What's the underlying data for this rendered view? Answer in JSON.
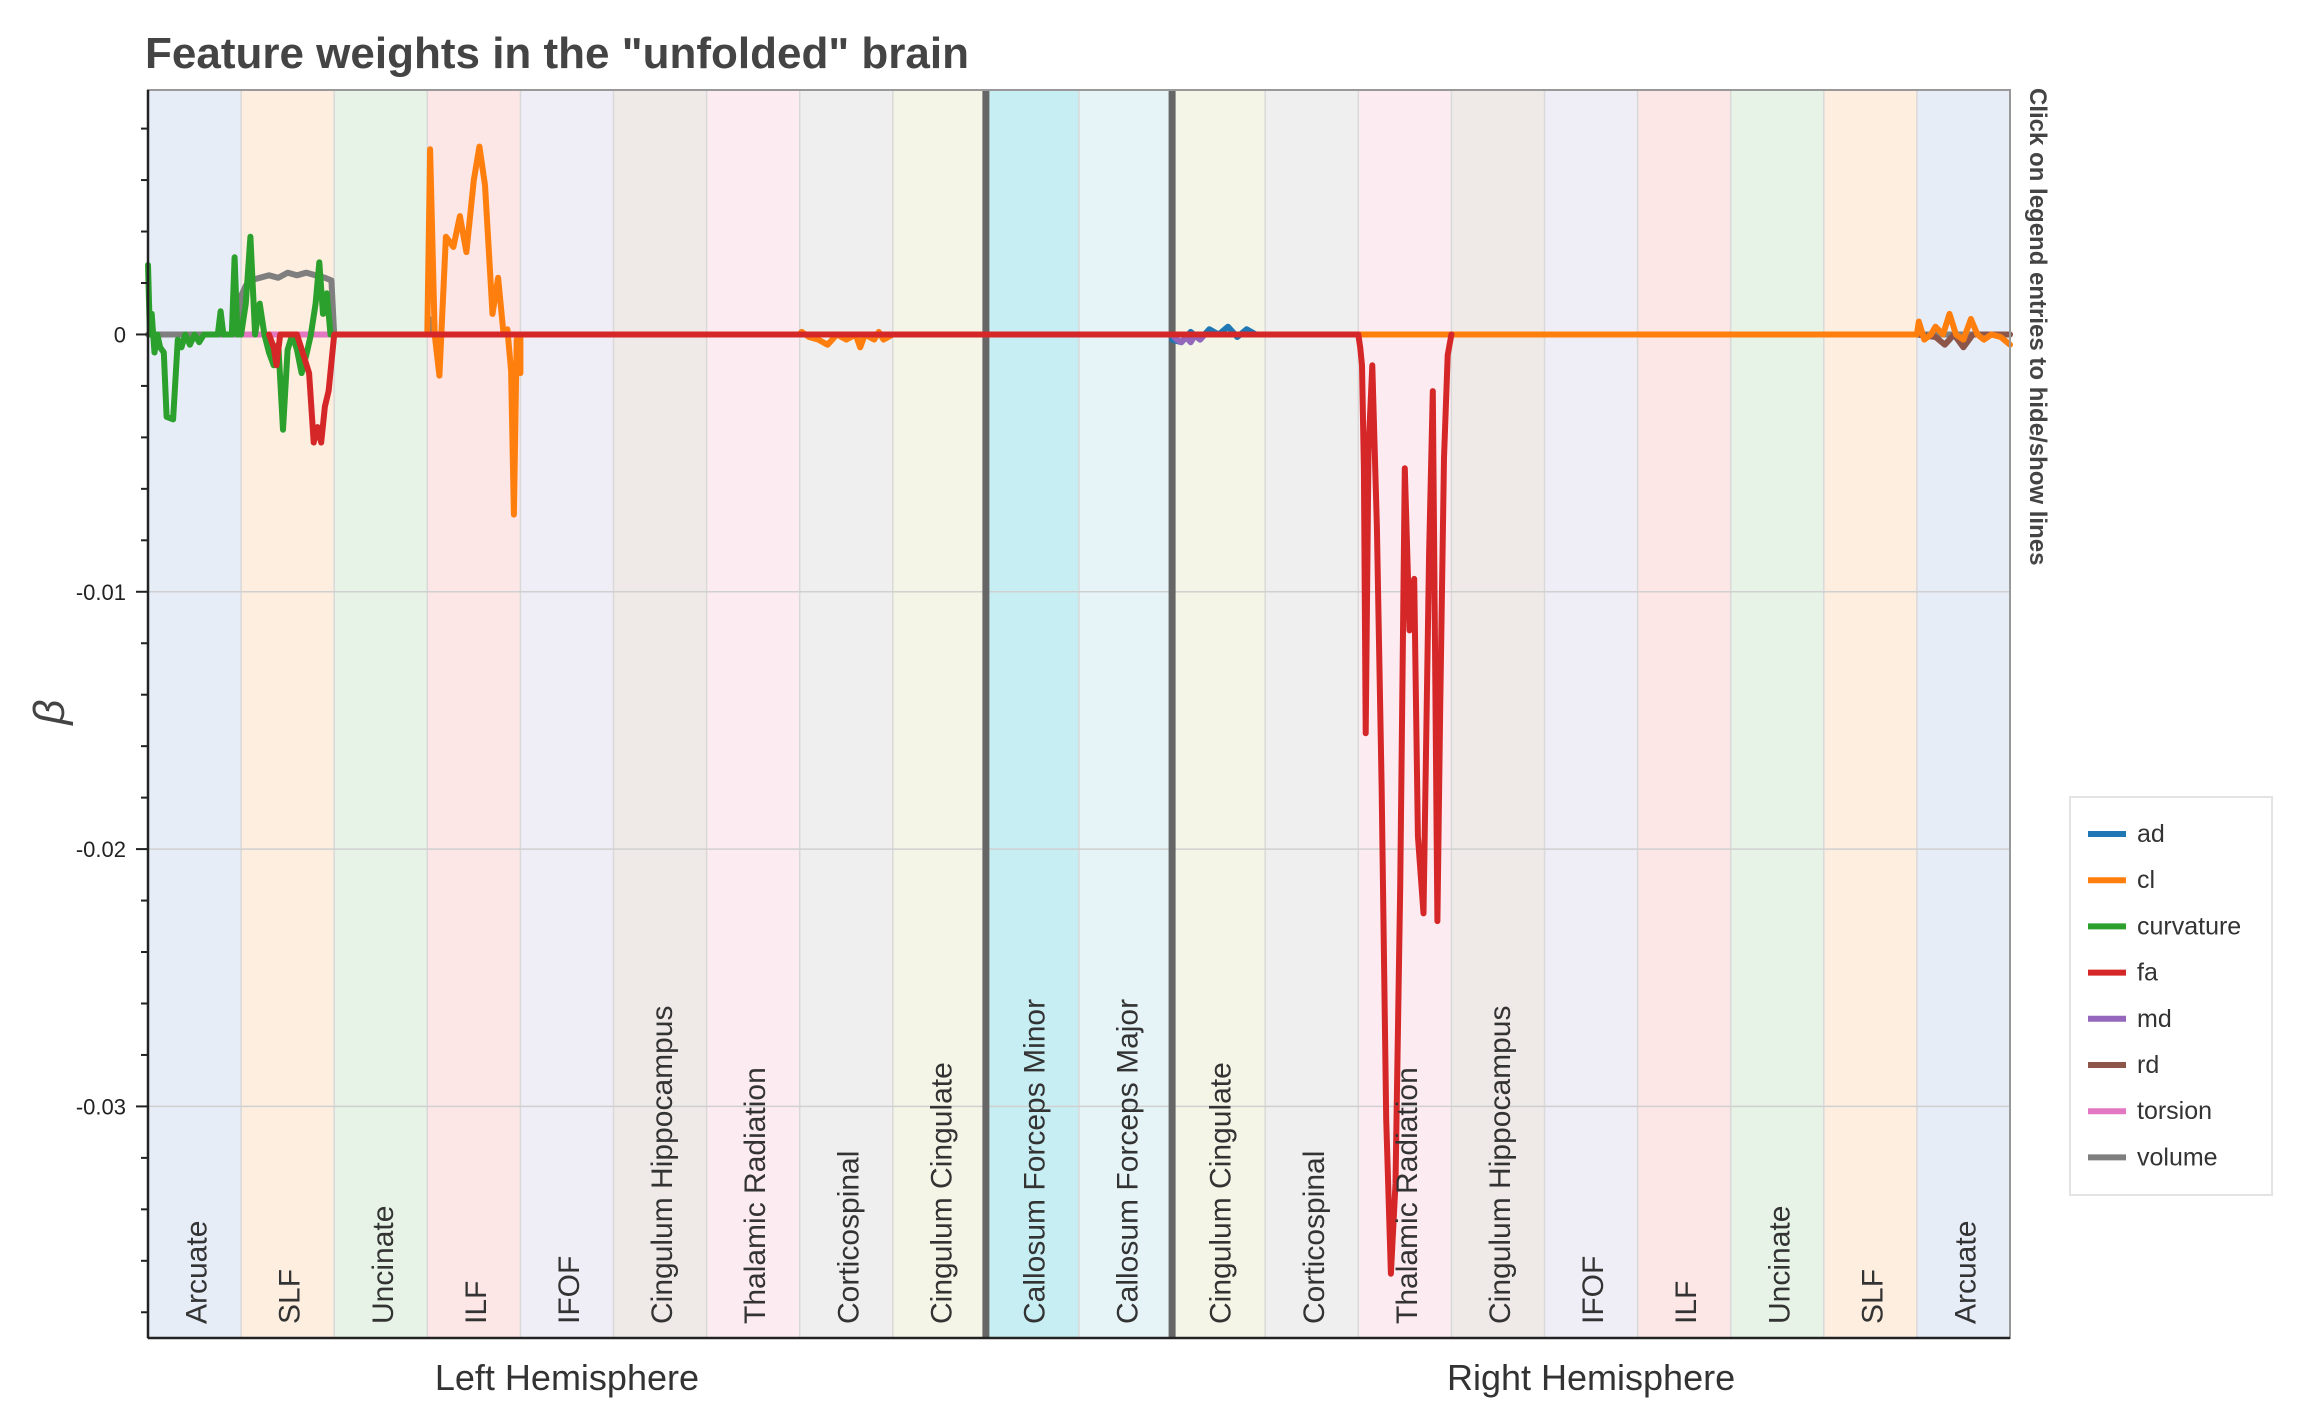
{
  "chart_data": {
    "type": "line",
    "title": "Feature weights in the \"unfolded\" brain",
    "ylabel": "β",
    "xlabel": "",
    "ylim": [
      -0.039,
      0.0095
    ],
    "yticks": [
      {
        "value": 0,
        "label": "0"
      },
      {
        "value": -0.01,
        "label": "-0.01"
      },
      {
        "value": -0.02,
        "label": "-0.02"
      },
      {
        "value": -0.03,
        "label": "-0.03"
      }
    ],
    "grid": true,
    "side_note": "Click on legend entries to hide/show lines",
    "x_groups": [
      {
        "label": "Left Hemisphere",
        "from": 0,
        "to": 9
      },
      {
        "label": "Right Hemisphere",
        "from": 11,
        "to": 20
      }
    ],
    "separators": [
      9,
      11
    ],
    "tracts": [
      {
        "name": "Arcuate",
        "color": "#e7edf7"
      },
      {
        "name": "SLF",
        "color": "#fdeee0"
      },
      {
        "name": "Uncinate",
        "color": "#e6f3e6"
      },
      {
        "name": "ILF",
        "color": "#fce6e6"
      },
      {
        "name": "IFOF",
        "color": "#efedf5"
      },
      {
        "name": "Cingulum Hippocampus",
        "color": "#efeae8"
      },
      {
        "name": "Thalamic Radiation",
        "color": "#fcecf2"
      },
      {
        "name": "Corticospinal",
        "color": "#efefef"
      },
      {
        "name": "Cingulum Cingulate",
        "color": "#f4f5e6"
      },
      {
        "name": "Callosum Forceps Minor",
        "color": "#c7eef3"
      },
      {
        "name": "Callosum Forceps Major",
        "color": "#e6f4f7"
      },
      {
        "name": "Cingulum Cingulate",
        "color": "#f4f5e6"
      },
      {
        "name": "Corticospinal",
        "color": "#efefef"
      },
      {
        "name": "Thalamic Radiation",
        "color": "#fcecf2"
      },
      {
        "name": "Cingulum Hippocampus",
        "color": "#efeae8"
      },
      {
        "name": "IFOF",
        "color": "#efedf5"
      },
      {
        "name": "ILF",
        "color": "#fce6e6"
      },
      {
        "name": "Uncinate",
        "color": "#e6f3e6"
      },
      {
        "name": "SLF",
        "color": "#fdeee0"
      },
      {
        "name": "Arcuate",
        "color": "#e7edf7"
      }
    ],
    "series": [
      {
        "name": "ad",
        "color": "#1f77b4",
        "points": [
          [
            11.0,
            -0.0002
          ],
          [
            11.1,
            -0.0003
          ],
          [
            11.2,
            0.0001
          ],
          [
            11.3,
            -0.0002
          ],
          [
            11.4,
            0.0002
          ],
          [
            11.5,
            0.0
          ],
          [
            11.6,
            0.0003
          ],
          [
            11.7,
            -0.0001
          ],
          [
            11.8,
            0.0002
          ],
          [
            11.9,
            0.0
          ],
          [
            12.0,
            0.0
          ]
        ]
      },
      {
        "name": "cl",
        "color": "#ff7f0e",
        "points": [
          [
            3.0,
            0.0
          ],
          [
            3.03,
            0.0072
          ],
          [
            3.08,
            0.0
          ],
          [
            3.13,
            -0.0016
          ],
          [
            3.2,
            0.0038
          ],
          [
            3.28,
            0.0034
          ],
          [
            3.35,
            0.0046
          ],
          [
            3.42,
            0.0032
          ],
          [
            3.5,
            0.006
          ],
          [
            3.56,
            0.0073
          ],
          [
            3.62,
            0.0058
          ],
          [
            3.7,
            0.0008
          ],
          [
            3.76,
            0.0022
          ],
          [
            3.82,
            0.0
          ],
          [
            3.86,
            0.0002
          ],
          [
            3.9,
            -0.0014
          ],
          [
            3.93,
            -0.007
          ],
          [
            3.96,
            -0.0002
          ],
          [
            4.0,
            -0.0015
          ],
          [
            4.0,
            0.0
          ],
          [
            7.0,
            0.0
          ],
          [
            7.02,
            0.0001
          ],
          [
            7.1,
            -0.0001
          ],
          [
            7.2,
            -0.0002
          ],
          [
            7.3,
            -0.0004
          ],
          [
            7.4,
            0.0
          ],
          [
            7.5,
            -0.0002
          ],
          [
            7.6,
            0.0
          ],
          [
            7.65,
            -0.0005
          ],
          [
            7.7,
            0.0
          ],
          [
            7.8,
            -0.0002
          ],
          [
            7.85,
            0.0001
          ],
          [
            7.9,
            -0.0002
          ],
          [
            8.0,
            0.0
          ],
          [
            19.0,
            0.0
          ],
          [
            19.02,
            0.0005
          ],
          [
            19.08,
            -0.0002
          ],
          [
            19.15,
            0.0
          ],
          [
            19.2,
            0.0003
          ],
          [
            19.28,
            0.0
          ],
          [
            19.35,
            0.0008
          ],
          [
            19.42,
            0.0
          ],
          [
            19.5,
            -0.0002
          ],
          [
            19.58,
            0.0006
          ],
          [
            19.65,
            0.0
          ],
          [
            19.72,
            -0.0002
          ],
          [
            19.8,
            0.0
          ],
          [
            19.9,
            -0.0001
          ],
          [
            20.0,
            -0.0004
          ]
        ]
      },
      {
        "name": "curvature",
        "color": "#2ca02c",
        "points": [
          [
            0.0,
            0.0027
          ],
          [
            0.02,
            0.0
          ],
          [
            0.04,
            0.0008
          ],
          [
            0.07,
            -0.0007
          ],
          [
            0.1,
            0.0
          ],
          [
            0.13,
            -0.0005
          ],
          [
            0.17,
            -0.0007
          ],
          [
            0.2,
            -0.0032
          ],
          [
            0.27,
            -0.0033
          ],
          [
            0.32,
            -0.0002
          ],
          [
            0.36,
            -0.0005
          ],
          [
            0.4,
            0.0
          ],
          [
            0.45,
            -0.0004
          ],
          [
            0.5,
            0.0
          ],
          [
            0.55,
            -0.0003
          ],
          [
            0.6,
            0.0
          ],
          [
            0.75,
            0.0
          ],
          [
            0.78,
            0.0009
          ],
          [
            0.81,
            0.0
          ],
          [
            0.9,
            0.0
          ],
          [
            0.93,
            0.003
          ],
          [
            0.96,
            0.0
          ],
          [
            1.0,
            0.0
          ],
          [
            1.05,
            0.0012
          ],
          [
            1.1,
            0.0038
          ],
          [
            1.15,
            0.0
          ],
          [
            1.2,
            0.0012
          ],
          [
            1.25,
            0.0
          ],
          [
            1.3,
            -0.0007
          ],
          [
            1.35,
            -0.0012
          ],
          [
            1.4,
            -0.0004
          ],
          [
            1.45,
            -0.0037
          ],
          [
            1.5,
            -0.0006
          ],
          [
            1.55,
            0.0
          ],
          [
            1.6,
            -0.0006
          ],
          [
            1.65,
            -0.0015
          ],
          [
            1.7,
            -0.0008
          ],
          [
            1.75,
            0.0
          ],
          [
            1.8,
            0.0012
          ],
          [
            1.84,
            0.0028
          ],
          [
            1.88,
            0.0008
          ],
          [
            1.92,
            0.0016
          ],
          [
            1.96,
            0.0
          ],
          [
            2.0,
            0.0
          ]
        ]
      },
      {
        "name": "fa",
        "color": "#d62728",
        "points": [
          [
            1.3,
            0.0
          ],
          [
            1.35,
            -0.0005
          ],
          [
            1.38,
            -0.0012
          ],
          [
            1.42,
            0.0
          ],
          [
            1.6,
            0.0
          ],
          [
            1.73,
            -0.0015
          ],
          [
            1.78,
            -0.0042
          ],
          [
            1.82,
            -0.0036
          ],
          [
            1.86,
            -0.0042
          ],
          [
            1.9,
            -0.0028
          ],
          [
            1.94,
            -0.0022
          ],
          [
            2.0,
            0.0
          ],
          [
            13.0,
            0.0
          ],
          [
            13.02,
            -0.0005
          ],
          [
            13.04,
            -0.0012
          ],
          [
            13.06,
            -0.0052
          ],
          [
            13.08,
            -0.0155
          ],
          [
            13.11,
            -0.0045
          ],
          [
            13.15,
            -0.0012
          ],
          [
            13.2,
            -0.0075
          ],
          [
            13.25,
            -0.0175
          ],
          [
            13.3,
            -0.0305
          ],
          [
            13.35,
            -0.0365
          ],
          [
            13.4,
            -0.033
          ],
          [
            13.45,
            -0.0215
          ],
          [
            13.5,
            -0.0052
          ],
          [
            13.55,
            -0.0115
          ],
          [
            13.6,
            -0.0095
          ],
          [
            13.64,
            -0.0195
          ],
          [
            13.7,
            -0.0225
          ],
          [
            13.76,
            -0.0085
          ],
          [
            13.8,
            -0.0022
          ],
          [
            13.85,
            -0.0228
          ],
          [
            13.88,
            -0.0145
          ],
          [
            13.92,
            -0.0048
          ],
          [
            13.96,
            -0.0008
          ],
          [
            14.0,
            0.0
          ]
        ]
      },
      {
        "name": "md",
        "color": "#9467bd",
        "points": [
          [
            11.0,
            0.0
          ],
          [
            11.05,
            -0.0002
          ],
          [
            11.1,
            -0.0003
          ],
          [
            11.15,
            -0.0001
          ],
          [
            11.2,
            -0.0003
          ],
          [
            11.25,
            0.0
          ],
          [
            11.3,
            -0.0002
          ],
          [
            11.35,
            0.0
          ],
          [
            12.0,
            0.0
          ]
        ]
      },
      {
        "name": "rd",
        "color": "#8c564b",
        "points": [
          [
            19.0,
            0.0
          ],
          [
            19.2,
            -0.0001
          ],
          [
            19.3,
            -0.0004
          ],
          [
            19.4,
            0.0
          ],
          [
            19.5,
            -0.0005
          ],
          [
            19.6,
            0.0
          ],
          [
            20.0,
            0.0
          ]
        ]
      },
      {
        "name": "torsion",
        "color": "#e377c2",
        "points": [
          [
            1.0,
            0.0
          ],
          [
            1.2,
            0.0
          ],
          [
            1.4,
            0.0
          ],
          [
            1.6,
            0.0
          ],
          [
            2.0,
            0.0
          ]
        ]
      },
      {
        "name": "volume",
        "color": "#7f7f7f",
        "points": [
          [
            0.0,
            0.0
          ],
          [
            0.95,
            0.0
          ],
          [
            1.0,
            0.0015
          ],
          [
            1.05,
            0.0019
          ],
          [
            1.1,
            0.0021
          ],
          [
            1.2,
            0.0022
          ],
          [
            1.3,
            0.0023
          ],
          [
            1.4,
            0.0022
          ],
          [
            1.5,
            0.0024
          ],
          [
            1.6,
            0.0023
          ],
          [
            1.7,
            0.0024
          ],
          [
            1.8,
            0.0023
          ],
          [
            1.9,
            0.0022
          ],
          [
            1.97,
            0.0021
          ],
          [
            2.0,
            0.0
          ],
          [
            3.0,
            0.0
          ],
          [
            3.02,
            0.0006
          ],
          [
            3.05,
            0.0
          ],
          [
            20.0,
            0.0
          ]
        ]
      }
    ]
  }
}
